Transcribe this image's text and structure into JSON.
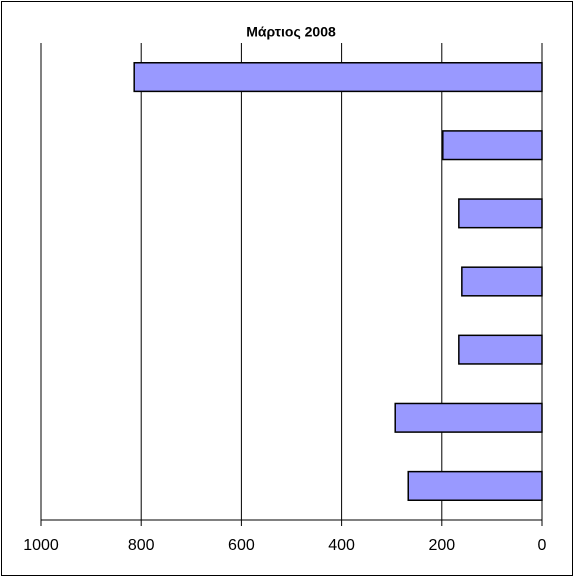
{
  "chart_data": {
    "type": "bar",
    "orientation": "horizontal",
    "title": "Μάρτιος  2008",
    "categories": [
      null,
      null,
      null,
      null,
      null,
      null,
      null
    ],
    "values": [
      814,
      198,
      166,
      160,
      166,
      293,
      267
    ],
    "color": "#9999ff",
    "xlim": [
      1000,
      0
    ],
    "xticks": [
      1000,
      800,
      600,
      400,
      200,
      0
    ],
    "grid": true
  }
}
